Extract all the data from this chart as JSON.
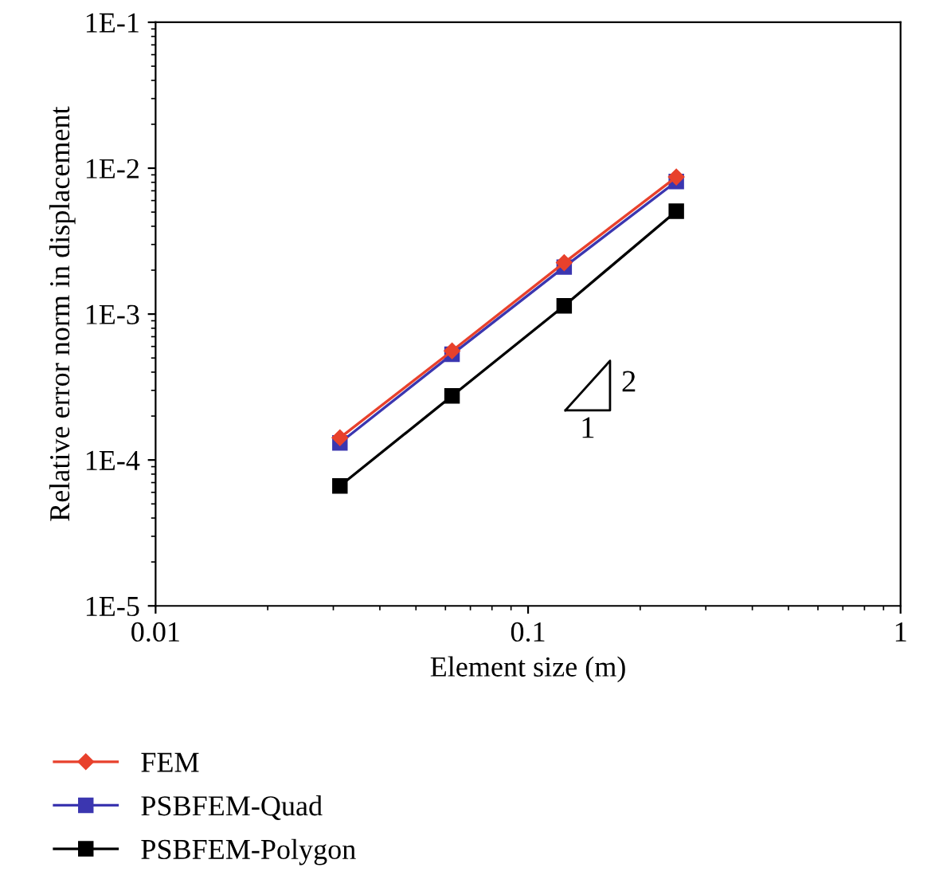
{
  "chart_data": {
    "type": "line",
    "xlabel": "Element size (m)",
    "ylabel": "Relative error norm in displacement",
    "x": [
      0.03125,
      0.0625,
      0.125,
      0.25
    ],
    "series": [
      {
        "name": "FEM",
        "color": "#e8412c",
        "marker": "diamond",
        "values": [
          0.000142,
          0.00056,
          0.00225,
          0.0087
        ]
      },
      {
        "name": "PSBFEM-Quad",
        "color": "#3b36b0",
        "marker": "square",
        "values": [
          0.000131,
          0.00053,
          0.0021,
          0.0081
        ]
      },
      {
        "name": "PSBFEM-Polygon",
        "color": "#000000",
        "marker": "square",
        "values": [
          6.64e-05,
          0.000275,
          0.00114,
          0.00507
        ]
      }
    ],
    "log": "xy",
    "xlim": [
      0.01,
      1
    ],
    "ylim": [
      1e-05,
      0.1
    ],
    "xticks": [
      0.01,
      0.1,
      1
    ],
    "yticks": [
      {
        "value": 1e-05,
        "label": "1E-5"
      },
      {
        "value": 0.0001,
        "label": "1E-4"
      },
      {
        "value": 0.001,
        "label": "1E-3"
      },
      {
        "value": 0.01,
        "label": "1E-2"
      },
      {
        "value": 0.1,
        "label": "1E-1"
      }
    ],
    "annotations": [
      "2",
      "1"
    ],
    "legend": "bottom left",
    "line_style": "solid",
    "grid": false
  }
}
